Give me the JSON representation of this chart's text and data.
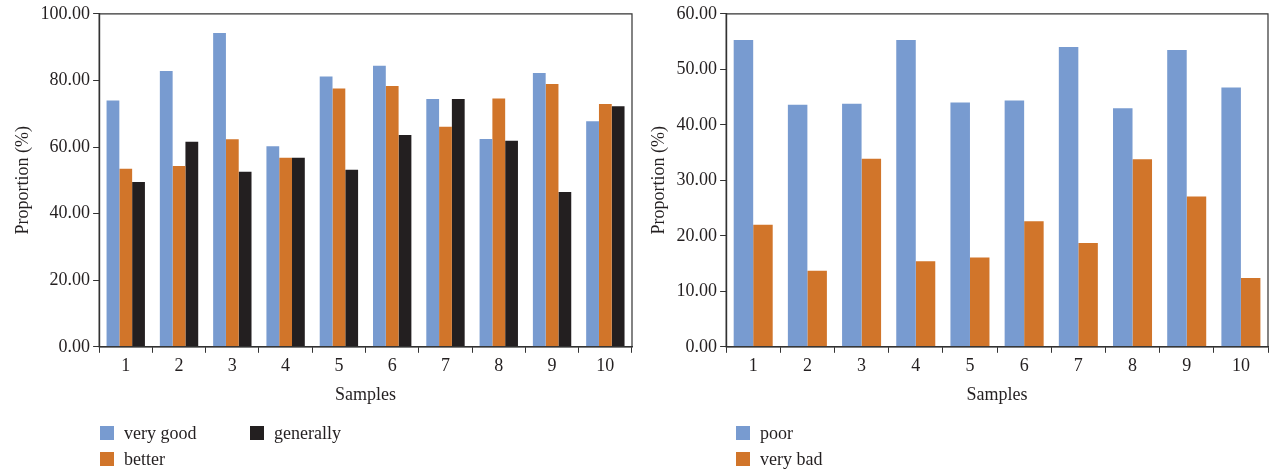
{
  "chart_data": [
    {
      "type": "bar",
      "xlabel": "Samples",
      "ylabel": "Proportion (%)",
      "categories": [
        "1",
        "2",
        "3",
        "4",
        "5",
        "6",
        "7",
        "8",
        "9",
        "10"
      ],
      "series": [
        {
          "name": "very good",
          "color": "#789bd0",
          "values": [
            74.0,
            82.8,
            94.2,
            60.2,
            81.2,
            84.4,
            74.4,
            62.4,
            82.2,
            67.7
          ]
        },
        {
          "name": "better",
          "color": "#d1752a",
          "values": [
            53.5,
            54.3,
            62.3,
            56.8,
            77.6,
            78.3,
            66.1,
            74.6,
            78.9,
            72.9
          ]
        },
        {
          "name": "generally",
          "color": "#231f20",
          "values": [
            49.5,
            61.6,
            52.6,
            56.8,
            53.2,
            63.6,
            74.4,
            61.9,
            46.5,
            72.2
          ]
        }
      ],
      "ylim": [
        0,
        100
      ],
      "yticks": [
        {
          "value": 0,
          "label": "0.00"
        },
        {
          "value": 20,
          "label": "20.00"
        },
        {
          "value": 40,
          "label": "40.00"
        },
        {
          "value": 60,
          "label": "60.00"
        },
        {
          "value": 80,
          "label": "80.00"
        },
        {
          "value": 100,
          "label": "100.00"
        }
      ],
      "grid": false,
      "legend": "bottom left"
    },
    {
      "type": "bar",
      "xlabel": "Samples",
      "ylabel": "Proportion (%)",
      "categories": [
        "1",
        "2",
        "3",
        "4",
        "5",
        "6",
        "7",
        "8",
        "9",
        "10"
      ],
      "series": [
        {
          "name": "poor",
          "color": "#789bd0",
          "values": [
            55.3,
            43.6,
            43.8,
            55.3,
            44.0,
            44.4,
            54.0,
            43.0,
            53.5,
            46.7
          ]
        },
        {
          "name": "very bad",
          "color": "#d1752a",
          "values": [
            22.0,
            13.7,
            33.9,
            15.4,
            16.1,
            22.6,
            18.7,
            33.8,
            27.1,
            12.4
          ]
        }
      ],
      "ylim": [
        0,
        60
      ],
      "yticks": [
        {
          "value": 0,
          "label": "0.00"
        },
        {
          "value": 10,
          "label": "10.00"
        },
        {
          "value": 20,
          "label": "20.00"
        },
        {
          "value": 30,
          "label": "30.00"
        },
        {
          "value": 40,
          "label": "40.00"
        },
        {
          "value": 50,
          "label": "50.00"
        },
        {
          "value": 60,
          "label": "60.00"
        }
      ],
      "grid": false,
      "legend": "bottom left"
    }
  ]
}
